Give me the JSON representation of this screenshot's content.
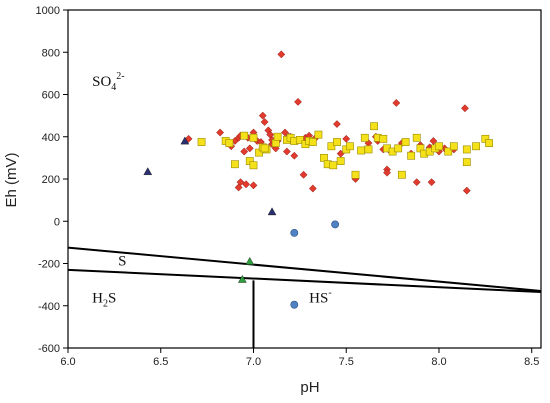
{
  "chart_data": {
    "type": "scatter",
    "xlabel": "pH",
    "ylabel": "Eh (mV)",
    "xlim": [
      6.0,
      8.55
    ],
    "ylim": [
      -600,
      1000
    ],
    "xticks": [
      "6.0",
      "6.5",
      "7.0",
      "7.5",
      "8.0",
      "8.5"
    ],
    "yticks": [
      "-600",
      "-400",
      "-200",
      "0",
      "200",
      "400",
      "600",
      "800",
      "1000"
    ],
    "grid": false,
    "regions": [
      {
        "base": "SO",
        "sub": "4",
        "sup": "2-",
        "x": 6.13,
        "y": 640
      },
      {
        "base": "S",
        "sub": "",
        "sup": "",
        "x": 6.27,
        "y": -210
      },
      {
        "base": "H",
        "sub": "2",
        "sup": "",
        "tail": "S",
        "x": 6.13,
        "y": -385
      },
      {
        "base": "HS",
        "sub": "",
        "sup": "-",
        "x": 7.3,
        "y": -385
      }
    ],
    "boundaries": [
      {
        "x": [
          6.0,
          8.55
        ],
        "y": [
          -125,
          -330
        ]
      },
      {
        "x": [
          6.0,
          8.55
        ],
        "y": [
          -230,
          -335
        ]
      },
      {
        "x": [
          7.0,
          7.0
        ],
        "y": [
          -280,
          -600
        ]
      }
    ],
    "series": [
      {
        "marker": "diamond",
        "color": "#e23b2e",
        "points": [
          [
            6.65,
            390
          ],
          [
            6.82,
            420
          ],
          [
            6.88,
            355
          ],
          [
            6.9,
            380
          ],
          [
            6.92,
            395
          ],
          [
            6.93,
            405
          ],
          [
            6.95,
            330
          ],
          [
            6.97,
            395
          ],
          [
            6.98,
            345
          ],
          [
            7.0,
            420
          ],
          [
            7.02,
            380
          ],
          [
            7.05,
            500
          ],
          [
            7.06,
            470
          ],
          [
            7.08,
            430
          ],
          [
            7.09,
            410
          ],
          [
            7.1,
            365
          ],
          [
            7.12,
            345
          ],
          [
            7.15,
            790
          ],
          [
            7.17,
            420
          ],
          [
            7.19,
            400
          ],
          [
            7.2,
            400
          ],
          [
            7.22,
            380
          ],
          [
            7.24,
            565
          ],
          [
            7.28,
            395
          ],
          [
            7.3,
            405
          ],
          [
            7.45,
            460
          ],
          [
            7.47,
            320
          ],
          [
            7.5,
            390
          ],
          [
            7.55,
            200
          ],
          [
            7.62,
            370
          ],
          [
            7.66,
            400
          ],
          [
            7.7,
            340
          ],
          [
            7.74,
            330
          ],
          [
            7.77,
            560
          ],
          [
            7.8,
            370
          ],
          [
            7.85,
            320
          ],
          [
            7.9,
            360
          ],
          [
            7.95,
            350
          ],
          [
            7.97,
            380
          ],
          [
            8.0,
            330
          ],
          [
            8.03,
            345
          ],
          [
            8.08,
            340
          ],
          [
            8.14,
            535
          ],
          [
            8.15,
            145
          ],
          [
            7.13,
            380
          ],
          [
            7.18,
            330
          ],
          [
            7.27,
            220
          ],
          [
            7.32,
            155
          ],
          [
            7.33,
            390
          ],
          [
            6.92,
            160
          ],
          [
            6.93,
            185
          ],
          [
            6.96,
            175
          ],
          [
            7.0,
            170
          ],
          [
            7.67,
            380
          ],
          [
            7.72,
            245
          ],
          [
            7.72,
            230
          ],
          [
            7.88,
            185
          ],
          [
            7.96,
            185
          ],
          [
            7.22,
            310
          ],
          [
            7.1,
            385
          ],
          [
            7.04,
            375
          ]
        ]
      },
      {
        "marker": "square",
        "color": "#f5e11a",
        "points": [
          [
            6.72,
            375
          ],
          [
            6.85,
            380
          ],
          [
            6.87,
            370
          ],
          [
            6.9,
            270
          ],
          [
            6.95,
            405
          ],
          [
            6.98,
            285
          ],
          [
            7.0,
            395
          ],
          [
            7.03,
            325
          ],
          [
            7.05,
            350
          ],
          [
            7.07,
            340
          ],
          [
            7.12,
            370
          ],
          [
            7.13,
            400
          ],
          [
            7.18,
            385
          ],
          [
            7.2,
            395
          ],
          [
            7.22,
            380
          ],
          [
            7.25,
            385
          ],
          [
            7.28,
            365
          ],
          [
            7.3,
            380
          ],
          [
            7.32,
            375
          ],
          [
            7.35,
            410
          ],
          [
            7.38,
            300
          ],
          [
            7.4,
            270
          ],
          [
            7.42,
            355
          ],
          [
            7.45,
            375
          ],
          [
            7.47,
            285
          ],
          [
            7.5,
            340
          ],
          [
            7.52,
            355
          ],
          [
            7.55,
            220
          ],
          [
            7.58,
            335
          ],
          [
            7.6,
            395
          ],
          [
            7.62,
            340
          ],
          [
            7.65,
            450
          ],
          [
            7.67,
            395
          ],
          [
            7.7,
            390
          ],
          [
            7.72,
            345
          ],
          [
            7.75,
            330
          ],
          [
            7.78,
            345
          ],
          [
            7.8,
            220
          ],
          [
            7.82,
            375
          ],
          [
            7.85,
            310
          ],
          [
            7.88,
            395
          ],
          [
            7.9,
            345
          ],
          [
            7.92,
            320
          ],
          [
            7.95,
            330
          ],
          [
            7.98,
            345
          ],
          [
            8.0,
            355
          ],
          [
            8.05,
            330
          ],
          [
            8.08,
            355
          ],
          [
            8.15,
            340
          ],
          [
            8.15,
            280
          ],
          [
            8.2,
            355
          ],
          [
            8.25,
            390
          ],
          [
            8.27,
            370
          ],
          [
            7.43,
            265
          ],
          [
            7.06,
            345
          ],
          [
            7.0,
            265
          ]
        ]
      },
      {
        "marker": "triangle",
        "color": "#2a2f6e",
        "points": [
          [
            6.43,
            235
          ],
          [
            6.63,
            380
          ],
          [
            7.1,
            45
          ]
        ]
      },
      {
        "marker": "circle",
        "color": "#4f82c2",
        "points": [
          [
            7.22,
            -55
          ],
          [
            7.44,
            -15
          ],
          [
            7.22,
            -395
          ]
        ]
      },
      {
        "marker": "triangle",
        "color": "#2f9e3e",
        "points": [
          [
            6.98,
            -190
          ],
          [
            6.94,
            -275
          ]
        ]
      }
    ]
  }
}
